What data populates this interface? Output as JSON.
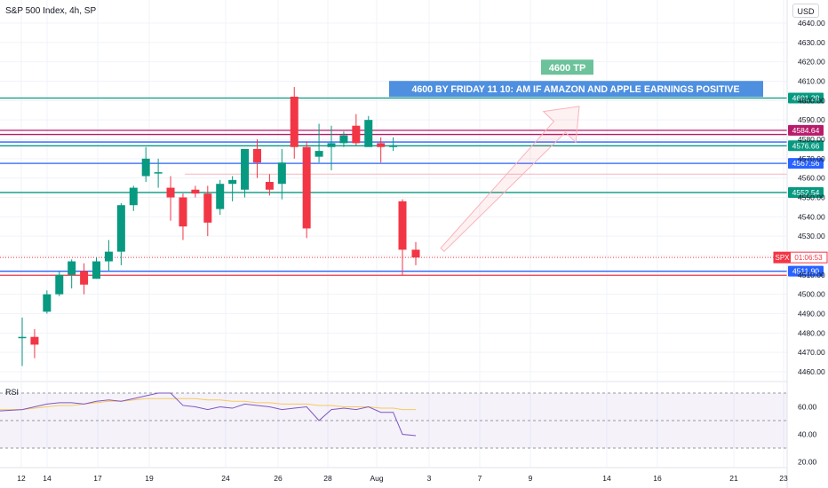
{
  "header": {
    "title": "S&P 500 Index, 4h, SP"
  },
  "currency_button": "USD",
  "rsi_label": "RSI",
  "colors": {
    "up": "#089981",
    "down": "#f23645",
    "rsi_line": "#7e57c2",
    "rsi_ma": "#f7c95c",
    "bg": "#ffffff"
  },
  "chart_data": {
    "type": "candlestick",
    "title": "S&P 500 Index, 4h, SP",
    "x_tick_labels": [
      "12",
      "14",
      "17",
      "19",
      "24",
      "26",
      "28",
      "Aug",
      "3",
      "7",
      "9",
      "14",
      "16",
      "21",
      "23"
    ],
    "y_tick_labels": [
      "4640.00",
      "4630.00",
      "4620.00",
      "4610.00",
      "4600.00",
      "4590.00",
      "4580.00",
      "4570.00",
      "4560.00",
      "4550.00",
      "4540.00",
      "4530.00",
      "4520.00",
      "4510.00",
      "4500.00",
      "4490.00",
      "4480.00",
      "4470.00",
      "4460.00"
    ],
    "ylim": [
      4455,
      4645
    ],
    "candles": [
      {
        "o": 4478,
        "h": 4488,
        "l": 4463,
        "c": 4478
      },
      {
        "o": 4478,
        "h": 4482,
        "l": 4467,
        "c": 4474
      },
      {
        "o": 4491,
        "h": 4502,
        "l": 4490,
        "c": 4500
      },
      {
        "o": 4500,
        "h": 4512,
        "l": 4499,
        "c": 4510
      },
      {
        "o": 4510,
        "h": 4518,
        "l": 4503,
        "c": 4517
      },
      {
        "o": 4512,
        "h": 4516,
        "l": 4500,
        "c": 4505
      },
      {
        "o": 4508,
        "h": 4519,
        "l": 4508,
        "c": 4517
      },
      {
        "o": 4517,
        "h": 4528,
        "l": 4512,
        "c": 4522
      },
      {
        "o": 4522,
        "h": 4547,
        "l": 4515,
        "c": 4546
      },
      {
        "o": 4546,
        "h": 4556,
        "l": 4543,
        "c": 4555
      },
      {
        "o": 4561,
        "h": 4576,
        "l": 4558,
        "c": 4570
      },
      {
        "o": 4563,
        "h": 4570,
        "l": 4555,
        "c": 4563
      },
      {
        "o": 4555,
        "h": 4561,
        "l": 4538,
        "c": 4550
      },
      {
        "o": 4550,
        "h": 4552,
        "l": 4528,
        "c": 4535
      },
      {
        "o": 4554,
        "h": 4556,
        "l": 4550,
        "c": 4552
      },
      {
        "o": 4552,
        "h": 4556,
        "l": 4530,
        "c": 4537
      },
      {
        "o": 4544,
        "h": 4559,
        "l": 4541,
        "c": 4557
      },
      {
        "o": 4557,
        "h": 4561,
        "l": 4548,
        "c": 4559
      },
      {
        "o": 4554,
        "h": 4574,
        "l": 4550,
        "c": 4575
      },
      {
        "o": 4575,
        "h": 4580,
        "l": 4560,
        "c": 4568
      },
      {
        "o": 4558,
        "h": 4562,
        "l": 4551,
        "c": 4554
      },
      {
        "o": 4557,
        "h": 4575,
        "l": 4549,
        "c": 4568
      },
      {
        "o": 4602,
        "h": 4607,
        "l": 4570,
        "c": 4576
      },
      {
        "o": 4576,
        "h": 4579,
        "l": 4529,
        "c": 4534
      },
      {
        "o": 4571,
        "h": 4588,
        "l": 4568,
        "c": 4574
      },
      {
        "o": 4576,
        "h": 4587,
        "l": 4564,
        "c": 4578
      },
      {
        "o": 4578,
        "h": 4584,
        "l": 4576,
        "c": 4582
      },
      {
        "o": 4587,
        "h": 4593,
        "l": 4577,
        "c": 4578
      },
      {
        "o": 4576,
        "h": 4592,
        "l": 4577,
        "c": 4590
      },
      {
        "o": 4578,
        "h": 4581,
        "l": 4568,
        "c": 4576
      },
      {
        "o": 4576,
        "h": 4581,
        "l": 4574,
        "c": 4577
      },
      {
        "o": 4548,
        "h": 4549,
        "l": 4510,
        "c": 4523
      },
      {
        "o": 4523,
        "h": 4527,
        "l": 4515,
        "c": 4519
      }
    ],
    "horizontal_levels": [
      {
        "value": 4601.29,
        "label": "4601.29",
        "color": "#089981"
      },
      {
        "value": 4584.64,
        "label": "4584.64",
        "color": "#b71c6b"
      },
      {
        "value": 4582.5,
        "label": "",
        "color": "#b71c6b"
      },
      {
        "value": 4578.6,
        "label": "",
        "color": "#2962ff"
      },
      {
        "value": 4576.66,
        "label": "4576.66",
        "color": "#089981"
      },
      {
        "value": 4567.56,
        "label": "4567.56",
        "color": "#2962ff"
      },
      {
        "value": 4552.54,
        "label": "4552.54",
        "color": "#089981"
      },
      {
        "value": 4511.9,
        "label": "4511.90",
        "color": "#2962ff"
      },
      {
        "value": 4509.8,
        "label": "",
        "color": "#f23645"
      }
    ],
    "price_label": {
      "symbol": "SPX",
      "time": "01:06:53",
      "value": 4519
    },
    "annotations": [
      {
        "text": "4600 TP",
        "value": 4617,
        "style": "green-box"
      },
      {
        "text": "4600 BY FRIDAY 11 10: AM IF AMAZON AND APPLE EARNINGS POSITIVE",
        "value": 4606,
        "style": "blue-box"
      }
    ],
    "arrow": {
      "from_value": 4523,
      "to_value": 4597
    },
    "rsi": {
      "y_tick_labels": [
        "60.00",
        "40.00",
        "20.00"
      ],
      "ylim": [
        17,
        83
      ],
      "band": [
        30,
        70
      ],
      "values": [
        58,
        60,
        62,
        63,
        63,
        62,
        64,
        65,
        64,
        66,
        68,
        70,
        70,
        61,
        60,
        58,
        60,
        59,
        62,
        61,
        60,
        58,
        59,
        60,
        50,
        58,
        59,
        58,
        60,
        56,
        56,
        40,
        39
      ],
      "ma_values": [
        58,
        59,
        60,
        61,
        61,
        62,
        63,
        64,
        64,
        65,
        66,
        66,
        66,
        66,
        66,
        65,
        65,
        64,
        64,
        63,
        63,
        62,
        62,
        62,
        61,
        61,
        60,
        60,
        60,
        59,
        59,
        58,
        58
      ]
    }
  }
}
